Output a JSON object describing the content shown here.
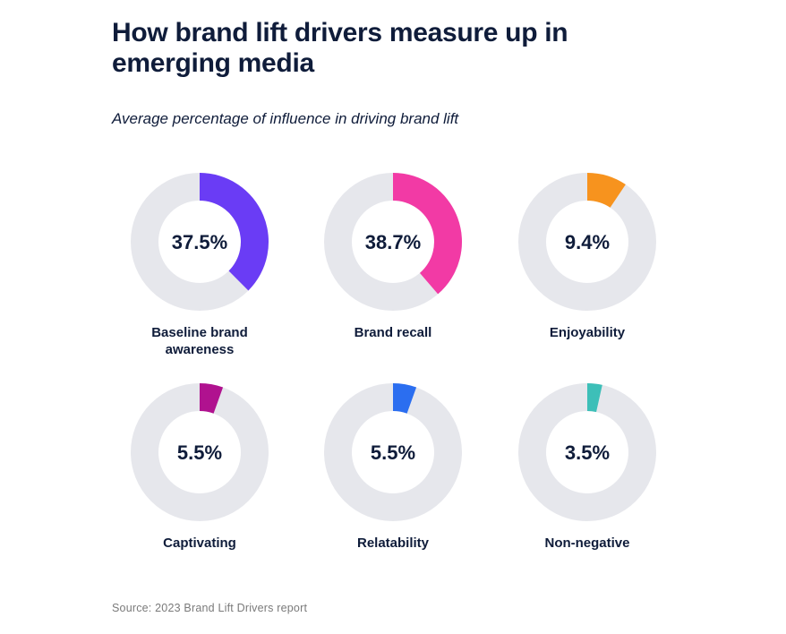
{
  "header": {
    "title": "How brand lift drivers measure up in emerging media",
    "subtitle": "Average percentage of influence in driving brand lift"
  },
  "footer": {
    "source": "Source: 2023 Brand Lift Drivers report"
  },
  "chart_data": {
    "type": "pie",
    "variant": "donut-small-multiples",
    "title": "How brand lift drivers measure up in emerging media",
    "subtitle": "Average percentage of influence in driving brand lift",
    "track_color": "#e6e7ec",
    "layout": "3 columns x 2 rows",
    "categories": [
      "Baseline brand awareness",
      "Brand recall",
      "Enjoyability",
      "Captivating",
      "Relatability",
      "Non-negative"
    ],
    "values": [
      37.5,
      38.7,
      9.4,
      5.5,
      5.5,
      3.5
    ],
    "unit": "%",
    "series": [
      {
        "name": "Baseline brand awareness",
        "value": 37.5,
        "label": "37.5%",
        "color": "#6a3cf5"
      },
      {
        "name": "Brand recall",
        "value": 38.7,
        "label": "38.7%",
        "color": "#f23aa5"
      },
      {
        "name": "Enjoyability",
        "value": 9.4,
        "label": "9.4%",
        "color": "#f7931e"
      },
      {
        "name": "Captivating",
        "value": 5.5,
        "label": "5.5%",
        "color": "#b0128f"
      },
      {
        "name": "Relatability",
        "value": 5.5,
        "label": "5.5%",
        "color": "#2b6ef0"
      },
      {
        "name": "Non-negative",
        "value": 3.5,
        "label": "3.5%",
        "color": "#3dbfb8"
      }
    ],
    "source": "Source: 2023 Brand Lift Drivers report"
  }
}
